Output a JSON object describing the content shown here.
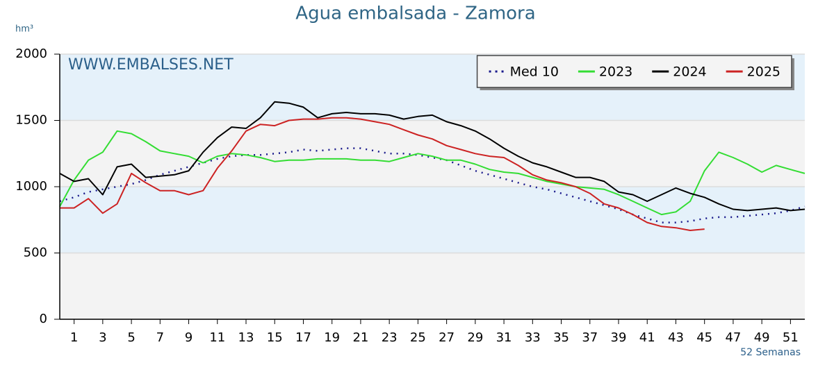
{
  "chart_data": {
    "type": "line",
    "title": "Agua embalsada - Zamora",
    "y_unit": "hm³",
    "watermark": "WWW.EMBALSES.NET",
    "x_label": "52 Semanas",
    "x": [
      0,
      1,
      2,
      3,
      4,
      5,
      6,
      7,
      8,
      9,
      10,
      11,
      12,
      13,
      14,
      15,
      16,
      17,
      18,
      19,
      20,
      21,
      22,
      23,
      24,
      25,
      26,
      27,
      28,
      29,
      30,
      31,
      32,
      33,
      34,
      35,
      36,
      37,
      38,
      39,
      40,
      41,
      42,
      43,
      44,
      45,
      46,
      47,
      48,
      49,
      50,
      51,
      52
    ],
    "xlim": [
      0,
      52
    ],
    "xticks": [
      1,
      3,
      5,
      7,
      9,
      11,
      13,
      15,
      17,
      19,
      21,
      23,
      25,
      27,
      29,
      31,
      33,
      35,
      37,
      39,
      41,
      43,
      45,
      47,
      49,
      51
    ],
    "ylim": [
      0,
      2000
    ],
    "yticks": [
      0,
      500,
      1000,
      1500,
      2000
    ],
    "grid": true,
    "legend": "upper right",
    "series": [
      {
        "name": "Med 10",
        "color": "#1a1a8c",
        "line_style": "dotted",
        "values": [
          890,
          920,
          960,
          980,
          1000,
          1020,
          1050,
          1090,
          1120,
          1150,
          1180,
          1210,
          1230,
          1240,
          1240,
          1250,
          1260,
          1280,
          1270,
          1280,
          1290,
          1290,
          1270,
          1250,
          1250,
          1240,
          1220,
          1200,
          1160,
          1120,
          1090,
          1060,
          1030,
          1000,
          980,
          950,
          920,
          890,
          860,
          830,
          790,
          760,
          730,
          730,
          740,
          760,
          770,
          770,
          780,
          790,
          800,
          820,
          850
        ]
      },
      {
        "name": "2023",
        "color": "#33dd33",
        "line_style": "solid",
        "values": [
          850,
          1050,
          1200,
          1260,
          1420,
          1400,
          1340,
          1270,
          1250,
          1230,
          1180,
          1230,
          1250,
          1240,
          1220,
          1190,
          1200,
          1200,
          1210,
          1210,
          1210,
          1200,
          1200,
          1190,
          1220,
          1250,
          1230,
          1200,
          1200,
          1170,
          1130,
          1110,
          1100,
          1070,
          1040,
          1020,
          1000,
          990,
          980,
          940,
          890,
          840,
          790,
          810,
          890,
          1120,
          1260,
          1220,
          1170,
          1110,
          1160,
          1130,
          1100
        ]
      },
      {
        "name": "2024",
        "color": "#000000",
        "line_style": "solid",
        "values": [
          1100,
          1040,
          1060,
          940,
          1150,
          1170,
          1070,
          1080,
          1090,
          1120,
          1260,
          1370,
          1450,
          1440,
          1520,
          1640,
          1630,
          1600,
          1520,
          1550,
          1560,
          1550,
          1550,
          1540,
          1510,
          1530,
          1540,
          1490,
          1460,
          1420,
          1360,
          1290,
          1230,
          1180,
          1150,
          1110,
          1070,
          1070,
          1040,
          960,
          940,
          890,
          940,
          990,
          950,
          920,
          870,
          830,
          820,
          830,
          840,
          820,
          830
        ]
      },
      {
        "name": "2025",
        "color": "#cc2222",
        "line_style": "solid",
        "values": [
          840,
          840,
          910,
          800,
          870,
          1100,
          1030,
          970,
          970,
          940,
          970,
          1140,
          1270,
          1420,
          1470,
          1460,
          1500,
          1510,
          1510,
          1520,
          1520,
          1510,
          1490,
          1470,
          1430,
          1390,
          1360,
          1310,
          1280,
          1250,
          1230,
          1220,
          1160,
          1090,
          1050,
          1030,
          1000,
          950,
          870,
          840,
          790,
          730,
          700,
          690,
          670,
          680,
          null,
          null,
          null,
          null,
          null,
          null,
          null
        ]
      }
    ]
  }
}
